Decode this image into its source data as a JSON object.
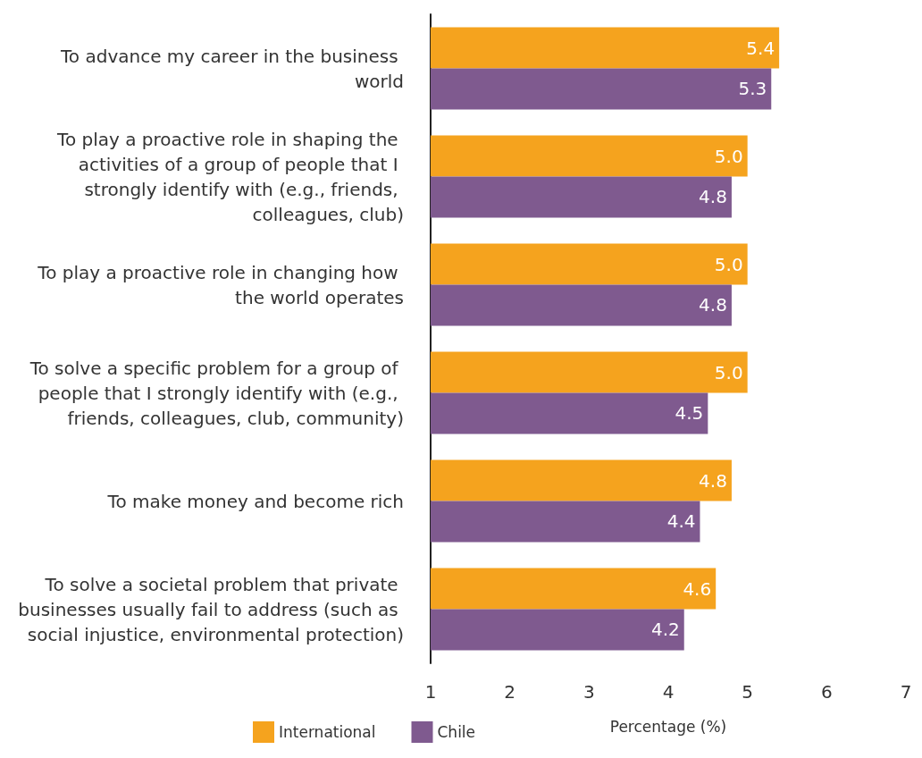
{
  "chart_data": {
    "type": "bar",
    "orientation": "horizontal",
    "xlabel": "Percentage (%)",
    "categories": [
      "To advance my career in the business world",
      "To play a proactive role in shaping the activities of a group of people that I strongly identify with (e.g., friends, colleagues, club)",
      "To play a proactive role in changing how the world operates",
      "To solve a specific problem for a group of people that I strongly identify with (e.g., friends, colleagues, club, community)",
      "To make money and become rich",
      "To solve a societal problem that private businesses usually fail to address (such as social injustice, environmental protection)"
    ],
    "series": [
      {
        "name": "International",
        "color": "#f5a31e",
        "values": [
          5.4,
          5.0,
          5.0,
          5.0,
          4.8,
          4.6
        ],
        "value_labels": [
          "5.4",
          "5.0",
          "5.0",
          "5.0",
          "4.8",
          "4.6"
        ]
      },
      {
        "name": "Chile",
        "color": "#7f5a8f",
        "values": [
          5.3,
          4.8,
          4.8,
          4.5,
          4.4,
          4.2
        ],
        "value_labels": [
          "5.3",
          "4.8",
          "4.8",
          "4.5",
          "4.4",
          "4.2"
        ]
      }
    ],
    "xlim": [
      1,
      7
    ],
    "xticks": [
      1,
      2,
      3,
      4,
      5,
      6,
      7
    ],
    "grid": false,
    "legend": "bottom"
  }
}
